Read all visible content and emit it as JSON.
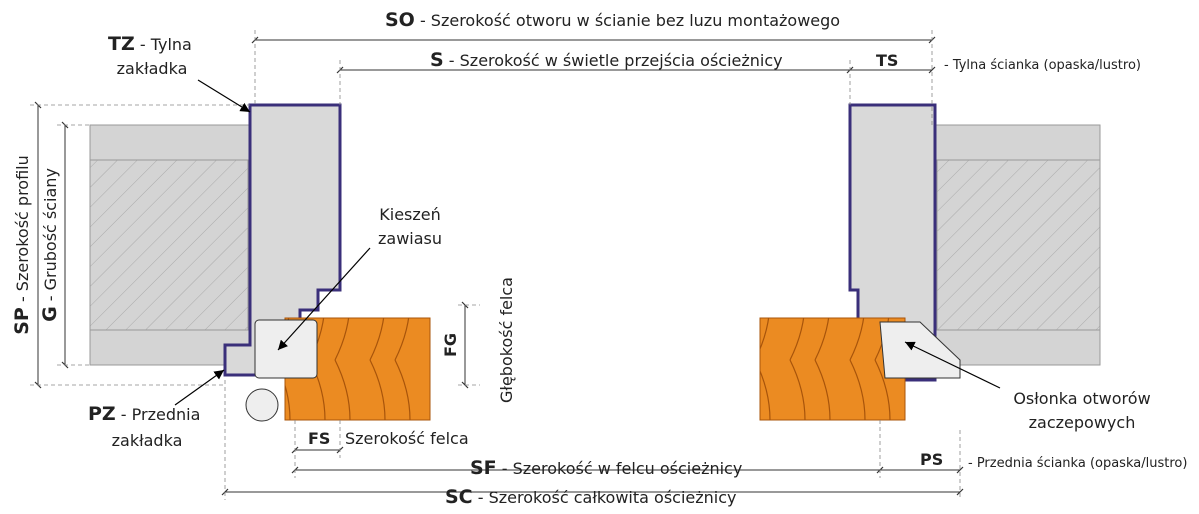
{
  "labels": {
    "so": {
      "code": "SO",
      "text": "- Szerokość otworu w ścianie bez luzu montażowego"
    },
    "tz": {
      "code": "TZ",
      "text": "- Tylna",
      "line2": "zakładka"
    },
    "s": {
      "code": "S",
      "text": "- Szerokość w świetle przejścia ościeżnicy"
    },
    "ts": {
      "code": "TS",
      "text": "- Tylna ścianka (opaska/lustro)"
    },
    "sp": {
      "code": "SP",
      "text": "- Szerokość profilu"
    },
    "g": {
      "code": "G",
      "text": "- Grubość ściany"
    },
    "kieszen": {
      "line1": "Kieszeń",
      "line2": "zawiasu"
    },
    "fg": {
      "code": "FG",
      "text": "Głębokość felca"
    },
    "pz": {
      "code": "PZ",
      "text": "- Przednia",
      "line2": "zakładka"
    },
    "fs": {
      "code": "FS",
      "text": "Szerokość felca"
    },
    "sf": {
      "code": "SF",
      "text": "- Szerokość w felcu ościeżnicy"
    },
    "ps": {
      "code": "PS",
      "text": "- Przednia ścianka (opaska/lustro)"
    },
    "sc": {
      "code": "SC",
      "text": "- Szerokość całkowita ościeżnicy"
    },
    "oslonka": {
      "line1": "Osłonka otworów",
      "line2": "zaczepowych"
    }
  }
}
